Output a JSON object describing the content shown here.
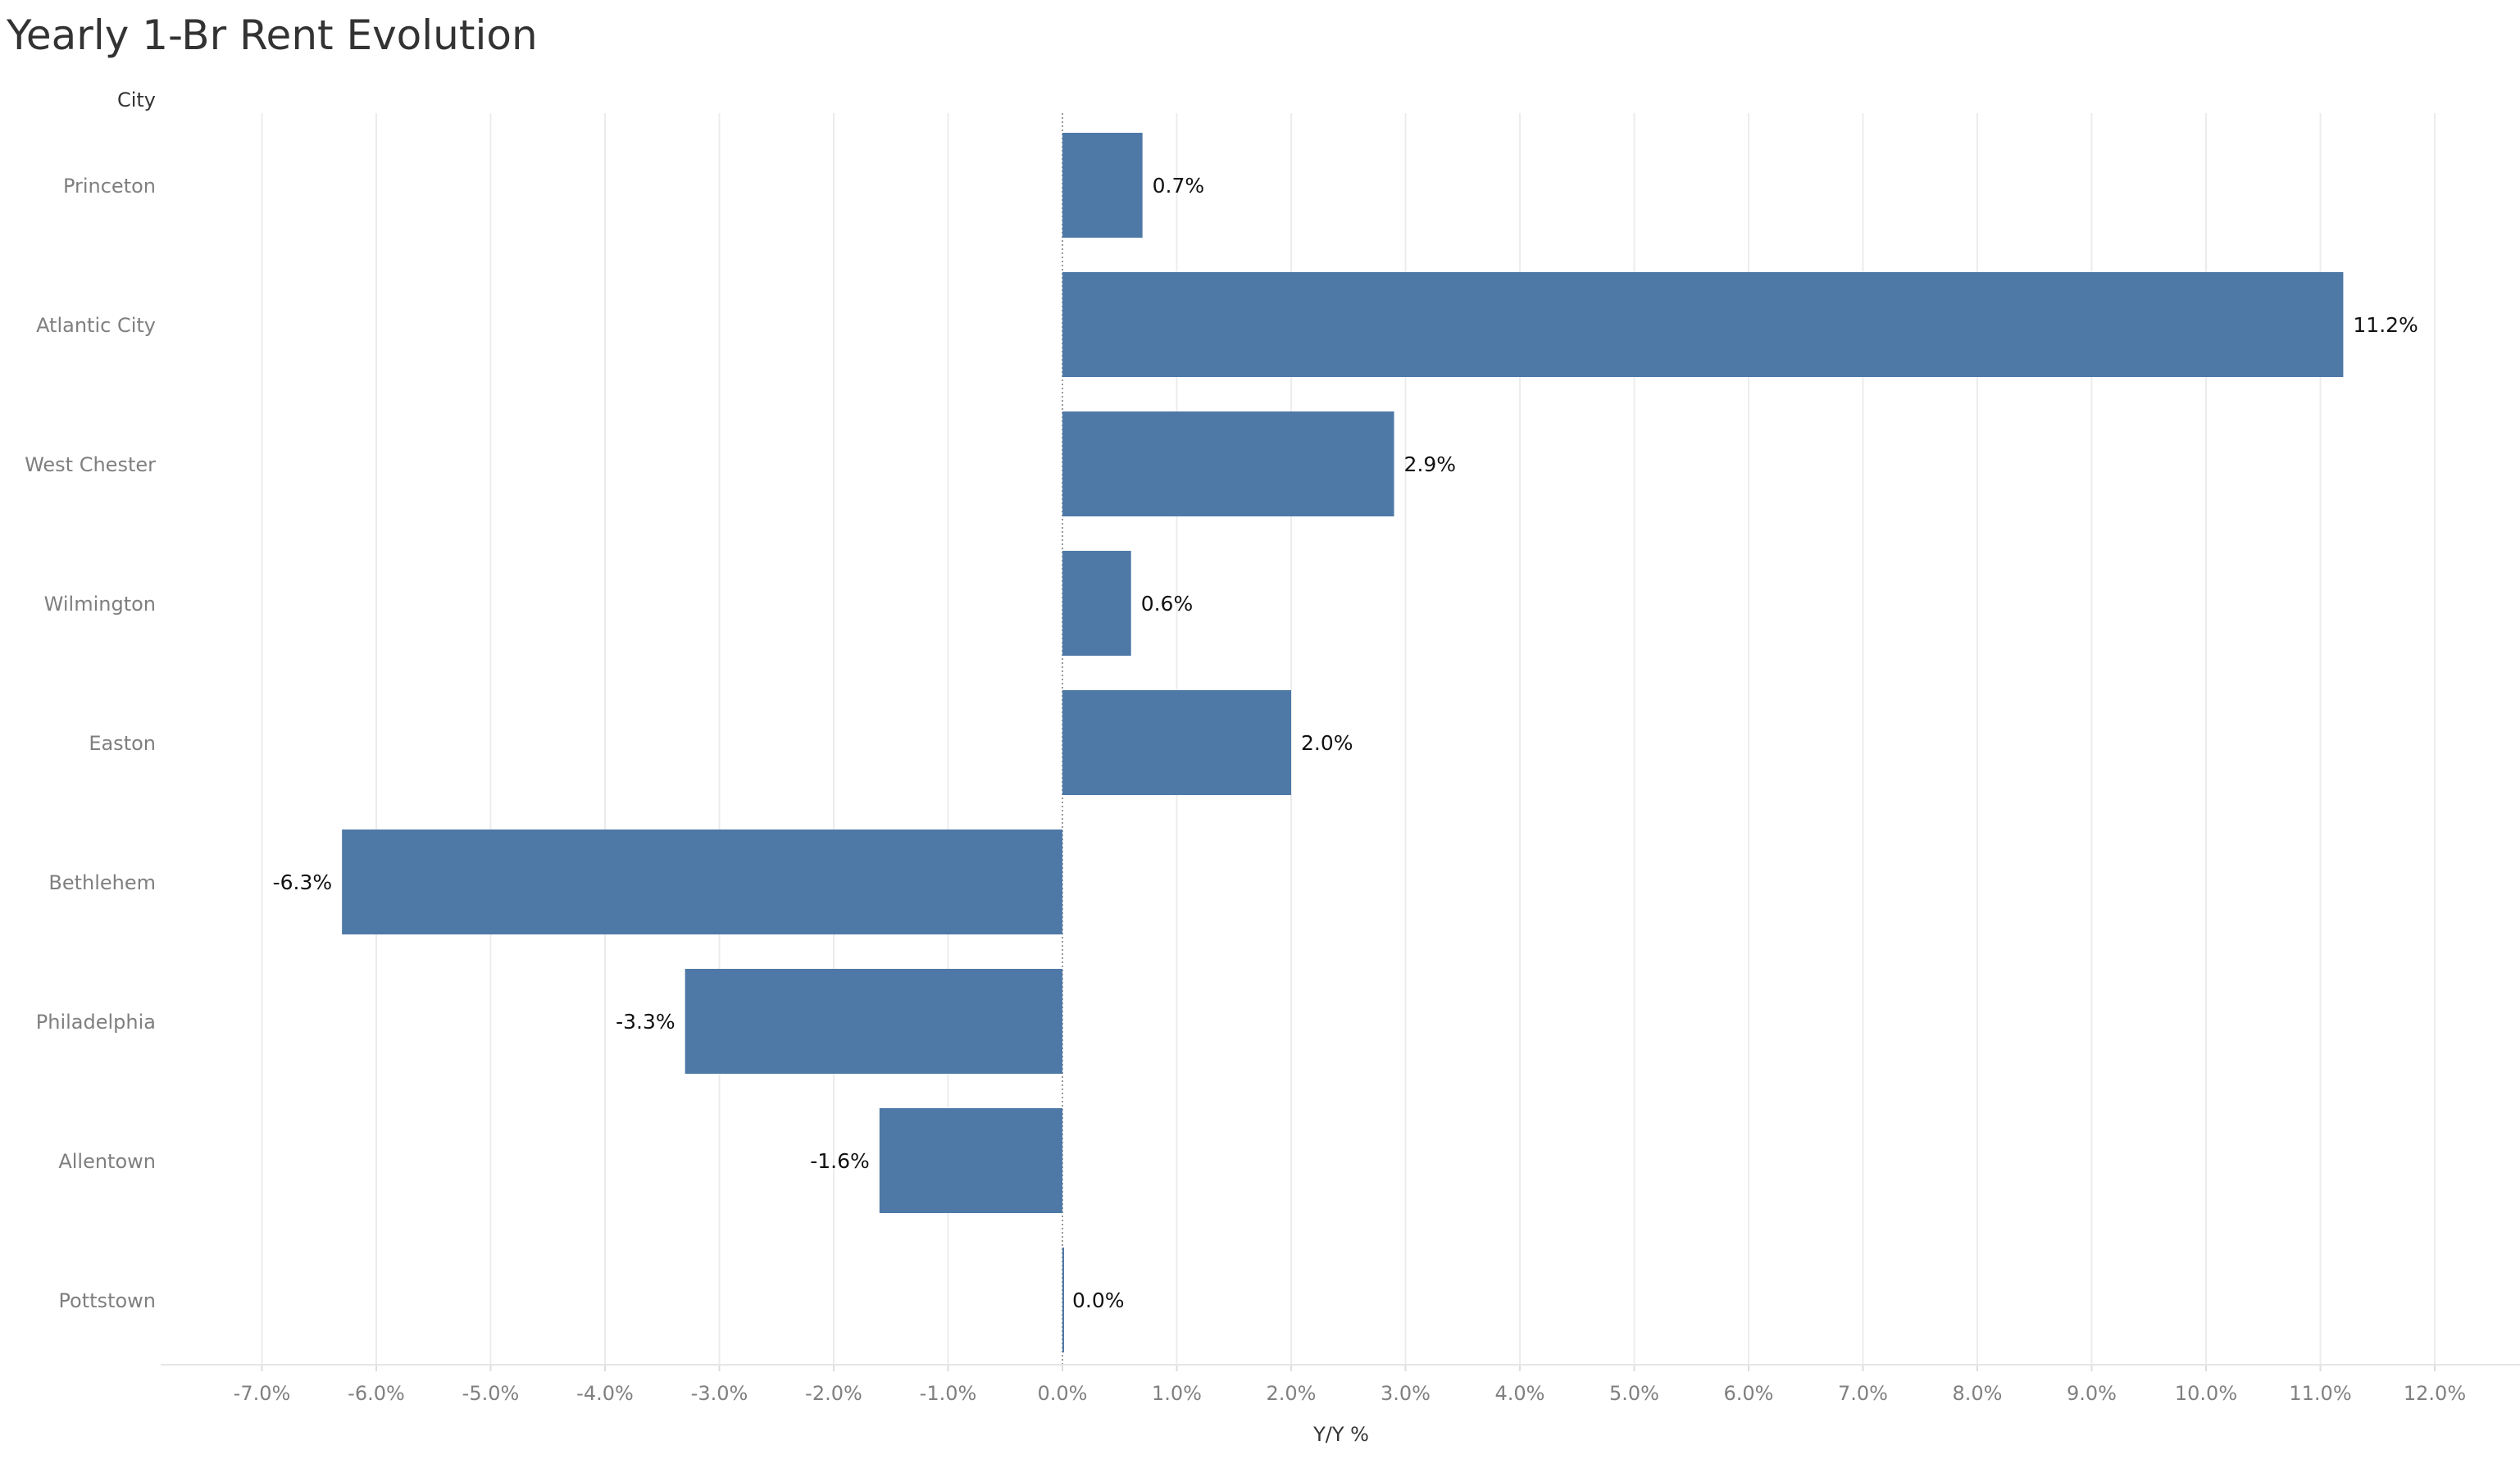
{
  "chart_data": {
    "type": "bar",
    "orientation": "horizontal",
    "title": "Yearly 1-Br Rent Evolution",
    "category_header": "City",
    "xlabel": "Y/Y %",
    "categories": [
      "Princeton",
      "Atlantic City",
      "West Chester",
      "Wilmington",
      "Easton",
      "Bethlehem",
      "Philadelphia",
      "Allentown",
      "Pottstown"
    ],
    "values": [
      0.7,
      11.2,
      2.9,
      0.6,
      2.0,
      -6.3,
      -3.3,
      -1.6,
      0.0
    ],
    "value_labels": [
      "0.7%",
      "11.2%",
      "2.9%",
      "0.6%",
      "2.0%",
      "-6.3%",
      "-3.3%",
      "-1.6%",
      "0.0%"
    ],
    "xlim": [
      -7.0,
      12.0
    ],
    "x_ticks": [
      -7,
      -6,
      -5,
      -4,
      -3,
      -2,
      -1,
      0,
      1,
      2,
      3,
      4,
      5,
      6,
      7,
      8,
      9,
      10,
      11,
      12
    ],
    "x_tick_labels": [
      "-7.0%",
      "-6.0%",
      "-5.0%",
      "-4.0%",
      "-3.0%",
      "-2.0%",
      "-1.0%",
      "0.0%",
      "1.0%",
      "2.0%",
      "3.0%",
      "4.0%",
      "5.0%",
      "6.0%",
      "7.0%",
      "8.0%",
      "9.0%",
      "10.0%",
      "11.0%",
      "12.0%"
    ],
    "grid": true,
    "bar_color": "#4e79a7"
  }
}
